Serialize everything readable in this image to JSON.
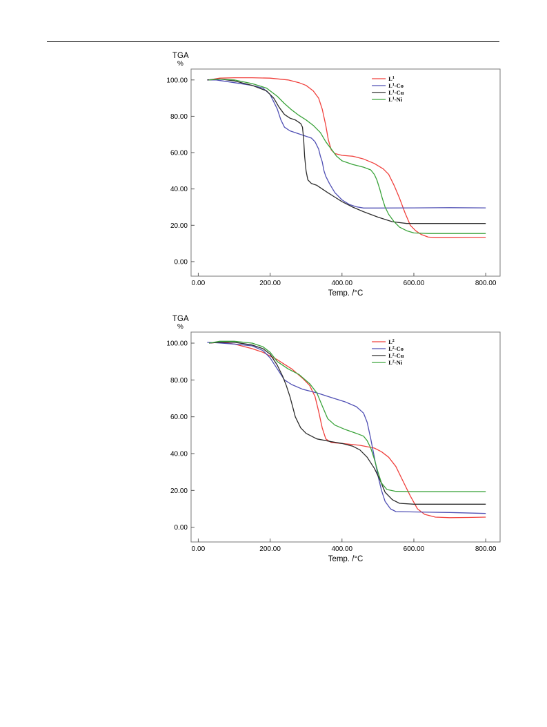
{
  "chart_data": [
    {
      "type": "line",
      "ylabel": "TGA",
      "yunit": "%",
      "xlabel": "Temp. /°C",
      "xlim": [
        -20,
        840
      ],
      "ylim": [
        -8,
        106
      ],
      "x_ticks": [
        0,
        200,
        400,
        600,
        800
      ],
      "x_tick_labels": [
        "0.00",
        "200.00",
        "400.00",
        "600.00",
        "800.00"
      ],
      "y_ticks": [
        0,
        20,
        40,
        60,
        80,
        100
      ],
      "y_tick_labels": [
        "0.00",
        "20.00",
        "40.00",
        "60.00",
        "80.00",
        "100.00"
      ],
      "legend": "top-right",
      "series": [
        {
          "name": "L",
          "sup": "1",
          "suffix": "",
          "color": "#f0403c",
          "points": [
            [
              30,
              100
            ],
            [
              60,
              101
            ],
            [
              100,
              101.2
            ],
            [
              150,
              101.2
            ],
            [
              200,
              101
            ],
            [
              250,
              100
            ],
            [
              280,
              98.5
            ],
            [
              300,
              97
            ],
            [
              320,
              94
            ],
            [
              335,
              90
            ],
            [
              345,
              84
            ],
            [
              355,
              75
            ],
            [
              362,
              67
            ],
            [
              370,
              61.5
            ],
            [
              380,
              59.5
            ],
            [
              400,
              58.5
            ],
            [
              430,
              58
            ],
            [
              460,
              56.5
            ],
            [
              490,
              54
            ],
            [
              515,
              51
            ],
            [
              530,
              48
            ],
            [
              545,
              42
            ],
            [
              560,
              35
            ],
            [
              575,
              27
            ],
            [
              590,
              20
            ],
            [
              605,
              17
            ],
            [
              620,
              15
            ],
            [
              640,
              13.5
            ],
            [
              660,
              13.2
            ],
            [
              700,
              13.2
            ],
            [
              760,
              13.3
            ],
            [
              800,
              13.3
            ]
          ]
        },
        {
          "name": "L",
          "sup": "1",
          "suffix": "-Co",
          "color": "#4f4fb4",
          "points": [
            [
              25,
              100
            ],
            [
              50,
              100
            ],
            [
              100,
              98.5
            ],
            [
              150,
              97
            ],
            [
              180,
              95.5
            ],
            [
              200,
              92
            ],
            [
              210,
              88
            ],
            [
              220,
              84
            ],
            [
              230,
              78
            ],
            [
              240,
              74
            ],
            [
              255,
              72
            ],
            [
              270,
              71
            ],
            [
              285,
              70
            ],
            [
              300,
              69
            ],
            [
              315,
              68
            ],
            [
              325,
              66
            ],
            [
              335,
              62
            ],
            [
              340,
              58
            ],
            [
              345,
              55
            ],
            [
              350,
              50
            ],
            [
              355,
              47
            ],
            [
              365,
              43
            ],
            [
              380,
              38
            ],
            [
              400,
              34
            ],
            [
              420,
              31.5
            ],
            [
              440,
              30.2
            ],
            [
              460,
              29.5
            ],
            [
              500,
              29.5
            ],
            [
              600,
              29.6
            ],
            [
              700,
              29.7
            ],
            [
              800,
              29.6
            ]
          ]
        },
        {
          "name": "L",
          "sup": "1",
          "suffix": "-Cu",
          "color": "#2c2c2c",
          "points": [
            [
              25,
              100
            ],
            [
              60,
              100.5
            ],
            [
              100,
              99.5
            ],
            [
              150,
              97
            ],
            [
              190,
              94
            ],
            [
              210,
              90
            ],
            [
              225,
              85
            ],
            [
              240,
              81
            ],
            [
              255,
              79
            ],
            [
              270,
              78
            ],
            [
              285,
              76
            ],
            [
              290,
              74
            ],
            [
              293,
              68
            ],
            [
              296,
              58
            ],
            [
              300,
              50
            ],
            [
              305,
              45
            ],
            [
              315,
              43
            ],
            [
              330,
              42
            ],
            [
              345,
              40
            ],
            [
              360,
              38
            ],
            [
              380,
              35.5
            ],
            [
              400,
              33
            ],
            [
              430,
              30
            ],
            [
              460,
              27.5
            ],
            [
              500,
              24.5
            ],
            [
              540,
              22
            ],
            [
              580,
              21
            ],
            [
              620,
              21
            ],
            [
              700,
              21
            ],
            [
              800,
              21
            ]
          ]
        },
        {
          "name": "L",
          "sup": "1",
          "suffix": "-Ni",
          "color": "#3aa33a",
          "points": [
            [
              30,
              100
            ],
            [
              60,
              100.5
            ],
            [
              100,
              100
            ],
            [
              150,
              98
            ],
            [
              190,
              95.5
            ],
            [
              220,
              91
            ],
            [
              240,
              87
            ],
            [
              260,
              83.5
            ],
            [
              280,
              80.5
            ],
            [
              300,
              78
            ],
            [
              320,
              75
            ],
            [
              340,
              71
            ],
            [
              355,
              66
            ],
            [
              370,
              62
            ],
            [
              385,
              58
            ],
            [
              400,
              55.5
            ],
            [
              430,
              53.5
            ],
            [
              460,
              52
            ],
            [
              480,
              50.5
            ],
            [
              490,
              48
            ],
            [
              497,
              45
            ],
            [
              505,
              40
            ],
            [
              512,
              35
            ],
            [
              520,
              30
            ],
            [
              530,
              26
            ],
            [
              545,
              22
            ],
            [
              560,
              19
            ],
            [
              580,
              17
            ],
            [
              600,
              15.8
            ],
            [
              640,
              15.5
            ],
            [
              700,
              15.5
            ],
            [
              800,
              15.5
            ]
          ]
        }
      ]
    },
    {
      "type": "line",
      "ylabel": "TGA",
      "yunit": "%",
      "xlabel": "Temp. /°C",
      "xlim": [
        -20,
        840
      ],
      "ylim": [
        -8,
        106
      ],
      "x_ticks": [
        0,
        200,
        400,
        600,
        800
      ],
      "x_tick_labels": [
        "0.00",
        "200.00",
        "400.00",
        "600.00",
        "800.00"
      ],
      "y_ticks": [
        0,
        20,
        40,
        60,
        80,
        100
      ],
      "y_tick_labels": [
        "0.00",
        "20.00",
        "40.00",
        "60.00",
        "80.00",
        "100.00"
      ],
      "legend": "top-right",
      "series": [
        {
          "name": "L",
          "sup": "2",
          "suffix": "",
          "color": "#f0403c",
          "points": [
            [
              30,
              100
            ],
            [
              60,
              100.5
            ],
            [
              100,
              99.5
            ],
            [
              150,
              97
            ],
            [
              180,
              95
            ],
            [
              200,
              93
            ],
            [
              220,
              91
            ],
            [
              240,
              88.5
            ],
            [
              260,
              86
            ],
            [
              290,
              81
            ],
            [
              310,
              77
            ],
            [
              325,
              71
            ],
            [
              335,
              63
            ],
            [
              345,
              54
            ],
            [
              355,
              48
            ],
            [
              370,
              46
            ],
            [
              400,
              45.5
            ],
            [
              450,
              44.5
            ],
            [
              490,
              43
            ],
            [
              510,
              41
            ],
            [
              530,
              38
            ],
            [
              550,
              33
            ],
            [
              570,
              25
            ],
            [
              590,
              17
            ],
            [
              610,
              10
            ],
            [
              630,
              7
            ],
            [
              660,
              5.5
            ],
            [
              700,
              5.2
            ],
            [
              750,
              5.3
            ],
            [
              800,
              5.5
            ]
          ]
        },
        {
          "name": "L",
          "sup": "2",
          "suffix": "-Co",
          "color": "#4f4fb4",
          "points": [
            [
              25,
              100.5
            ],
            [
              50,
              100.2
            ],
            [
              100,
              99.5
            ],
            [
              150,
              98.5
            ],
            [
              180,
              96
            ],
            [
              200,
              92
            ],
            [
              220,
              86
            ],
            [
              240,
              80
            ],
            [
              260,
              77.5
            ],
            [
              290,
              75
            ],
            [
              330,
              73
            ],
            [
              370,
              70.5
            ],
            [
              410,
              68
            ],
            [
              440,
              65.5
            ],
            [
              460,
              62
            ],
            [
              470,
              57
            ],
            [
              480,
              48
            ],
            [
              490,
              38
            ],
            [
              500,
              28
            ],
            [
              510,
              20
            ],
            [
              520,
              14
            ],
            [
              535,
              10
            ],
            [
              550,
              8.5
            ],
            [
              600,
              8.3
            ],
            [
              700,
              8
            ],
            [
              800,
              7.5
            ]
          ]
        },
        {
          "name": "L",
          "sup": "2",
          "suffix": "-Cu",
          "color": "#2c2c2c",
          "points": [
            [
              30,
              100
            ],
            [
              60,
              100.5
            ],
            [
              100,
              100.5
            ],
            [
              150,
              99
            ],
            [
              180,
              97
            ],
            [
              200,
              94
            ],
            [
              220,
              88
            ],
            [
              235,
              82
            ],
            [
              245,
              77
            ],
            [
              255,
              71
            ],
            [
              262,
              66
            ],
            [
              270,
              60
            ],
            [
              285,
              54
            ],
            [
              300,
              51
            ],
            [
              330,
              48
            ],
            [
              370,
              46.5
            ],
            [
              400,
              45.5
            ],
            [
              430,
              44
            ],
            [
              450,
              42
            ],
            [
              470,
              38
            ],
            [
              490,
              32
            ],
            [
              505,
              26
            ],
            [
              520,
              19
            ],
            [
              540,
              15
            ],
            [
              560,
              13
            ],
            [
              600,
              12.5
            ],
            [
              700,
              12.5
            ],
            [
              800,
              12.5
            ]
          ]
        },
        {
          "name": "L",
          "sup": "2",
          "suffix": "-Ni",
          "color": "#3aa33a",
          "points": [
            [
              30,
              100
            ],
            [
              60,
              101
            ],
            [
              100,
              101
            ],
            [
              150,
              100
            ],
            [
              180,
              98
            ],
            [
              200,
              95
            ],
            [
              220,
              90
            ],
            [
              250,
              86
            ],
            [
              280,
              83
            ],
            [
              310,
              78
            ],
            [
              330,
              73
            ],
            [
              345,
              66
            ],
            [
              360,
              59
            ],
            [
              380,
              55.5
            ],
            [
              410,
              53
            ],
            [
              440,
              51
            ],
            [
              460,
              49.5
            ],
            [
              470,
              47
            ],
            [
              480,
              43
            ],
            [
              490,
              37
            ],
            [
              500,
              30
            ],
            [
              510,
              24
            ],
            [
              525,
              20.5
            ],
            [
              550,
              19.5
            ],
            [
              600,
              19.3
            ],
            [
              700,
              19.3
            ],
            [
              800,
              19.3
            ]
          ]
        }
      ]
    }
  ]
}
